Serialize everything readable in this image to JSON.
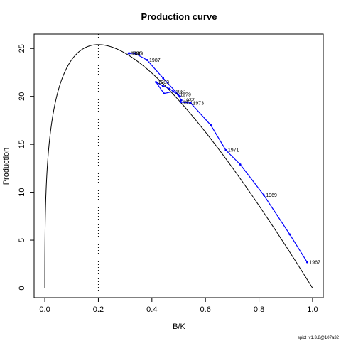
{
  "chart_data": {
    "type": "line",
    "title": "Production curve",
    "xlabel": "B/K",
    "ylabel": "Production",
    "xlim": [
      -0.04,
      1.04
    ],
    "ylim": [
      -1.0,
      26.5
    ],
    "x_ticks": [
      "0.0",
      "0.2",
      "0.4",
      "0.6",
      "0.8",
      "1.0"
    ],
    "x_tick_values": [
      0.0,
      0.2,
      0.4,
      0.6,
      0.8,
      1.0
    ],
    "y_ticks": [
      "0",
      "5",
      "10",
      "15",
      "20",
      "25"
    ],
    "y_tick_values": [
      0,
      5,
      10,
      15,
      20,
      25
    ],
    "grid": false,
    "reference_lines": {
      "vertical_dotted_x": 0.2,
      "horizontal_dotted_y": 0
    },
    "production_curve": {
      "name": "",
      "color": "#000000",
      "bmsy_fraction": 0.2,
      "max_production": 25.4
    },
    "series": [
      {
        "name": "",
        "color": "#0000ff",
        "points": [
          {
            "x": 0.98,
            "y": 2.7,
            "label": "1967"
          },
          {
            "x": 0.915,
            "y": 5.6,
            "label": ""
          },
          {
            "x": 0.818,
            "y": 9.7,
            "label": "1969"
          },
          {
            "x": 0.73,
            "y": 12.9,
            "label": ""
          },
          {
            "x": 0.676,
            "y": 14.4,
            "label": "1971"
          },
          {
            "x": 0.62,
            "y": 17.0,
            "label": ""
          },
          {
            "x": 0.545,
            "y": 19.3,
            "label": "1973"
          },
          {
            "x": 0.507,
            "y": 19.4,
            "label": "1975"
          },
          {
            "x": 0.51,
            "y": 19.6,
            "label": "1977"
          },
          {
            "x": 0.497,
            "y": 20.2,
            "label": "1979"
          },
          {
            "x": 0.48,
            "y": 20.5,
            "label": "1981"
          },
          {
            "x": 0.445,
            "y": 20.3,
            "label": ""
          },
          {
            "x": 0.415,
            "y": 21.5,
            "label": "1983"
          },
          {
            "x": 0.441,
            "y": 21.1,
            "label": ""
          },
          {
            "x": 0.466,
            "y": 20.8,
            "label": ""
          },
          {
            "x": 0.505,
            "y": 20.0,
            "label": ""
          },
          {
            "x": 0.442,
            "y": 21.9,
            "label": ""
          },
          {
            "x": 0.382,
            "y": 23.8,
            "label": "1987"
          },
          {
            "x": 0.336,
            "y": 24.5,
            "label": ""
          },
          {
            "x": 0.317,
            "y": 24.5,
            "label": "1989"
          },
          {
            "x": 0.313,
            "y": 24.5,
            "label": "1990"
          }
        ]
      }
    ],
    "footer_text": "spict_v1.3.8@107a32"
  }
}
